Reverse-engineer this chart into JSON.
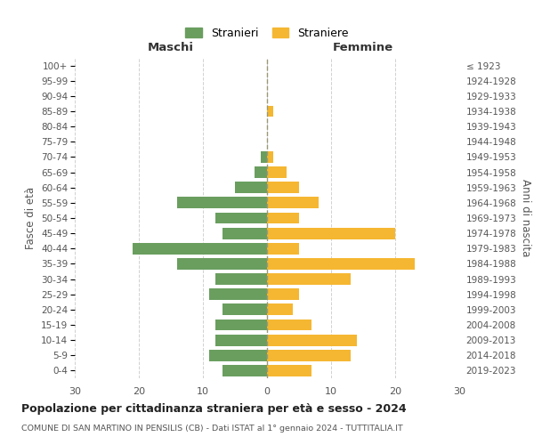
{
  "age_groups": [
    "0-4",
    "5-9",
    "10-14",
    "15-19",
    "20-24",
    "25-29",
    "30-34",
    "35-39",
    "40-44",
    "45-49",
    "50-54",
    "55-59",
    "60-64",
    "65-69",
    "70-74",
    "75-79",
    "80-84",
    "85-89",
    "90-94",
    "95-99",
    "100+"
  ],
  "birth_years": [
    "2019-2023",
    "2014-2018",
    "2009-2013",
    "2004-2008",
    "1999-2003",
    "1994-1998",
    "1989-1993",
    "1984-1988",
    "1979-1983",
    "1974-1978",
    "1969-1973",
    "1964-1968",
    "1959-1963",
    "1954-1958",
    "1949-1953",
    "1944-1948",
    "1939-1943",
    "1934-1938",
    "1929-1933",
    "1924-1928",
    "≤ 1923"
  ],
  "males": [
    7,
    9,
    8,
    8,
    7,
    9,
    8,
    14,
    21,
    7,
    8,
    14,
    5,
    2,
    1,
    0,
    0,
    0,
    0,
    0,
    0
  ],
  "females": [
    7,
    13,
    14,
    7,
    4,
    5,
    13,
    23,
    5,
    20,
    5,
    8,
    5,
    3,
    1,
    0,
    0,
    1,
    0,
    0,
    0
  ],
  "male_color": "#6a9e5f",
  "female_color": "#f5b731",
  "title": "Popolazione per cittadinanza straniera per età e sesso - 2024",
  "subtitle": "COMUNE DI SAN MARTINO IN PENSILIS (CB) - Dati ISTAT al 1° gennaio 2024 - TUTTITALIA.IT",
  "xlabel_left": "Maschi",
  "xlabel_right": "Femmine",
  "ylabel_left": "Fasce di età",
  "ylabel_right": "Anni di nascita",
  "legend_male": "Stranieri",
  "legend_female": "Straniere",
  "xlim": 30,
  "background_color": "#ffffff",
  "grid_color": "#cccccc"
}
